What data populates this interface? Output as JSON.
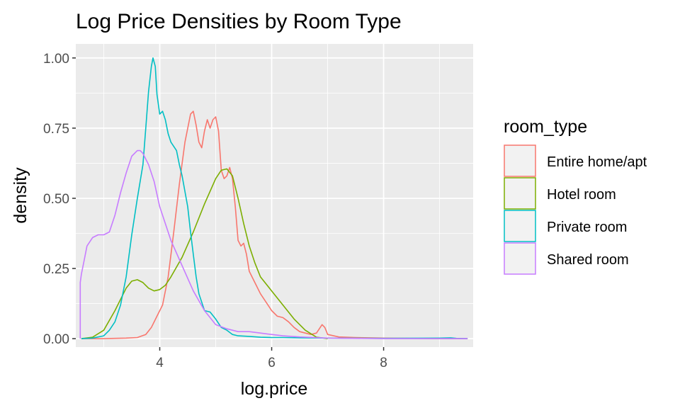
{
  "chart_data": {
    "type": "line",
    "title": "Log Price Densities by Room Type",
    "xlabel": "log.price",
    "ylabel": "density",
    "xlim": [
      2.5,
      9.6
    ],
    "ylim": [
      -0.03,
      1.05
    ],
    "x_ticks": [
      4,
      6,
      8
    ],
    "x_tick_labels": [
      "4",
      "6",
      "8"
    ],
    "y_ticks": [
      0,
      0.25,
      0.5,
      0.75,
      1.0
    ],
    "y_tick_labels": [
      "0.00",
      "0.25",
      "0.50",
      "0.75",
      "1.00"
    ],
    "grid": true,
    "legend": {
      "title": "room_type",
      "position": "right"
    },
    "series": [
      {
        "name": "Entire home/apt",
        "color": "#F8766D",
        "points": [
          [
            2.6,
            0.0
          ],
          [
            3.0,
            0.0
          ],
          [
            3.4,
            0.002
          ],
          [
            3.6,
            0.004
          ],
          [
            3.75,
            0.015
          ],
          [
            3.85,
            0.04
          ],
          [
            3.95,
            0.08
          ],
          [
            4.05,
            0.12
          ],
          [
            4.15,
            0.22
          ],
          [
            4.25,
            0.38
          ],
          [
            4.35,
            0.55
          ],
          [
            4.45,
            0.7
          ],
          [
            4.55,
            0.8
          ],
          [
            4.6,
            0.81
          ],
          [
            4.65,
            0.76
          ],
          [
            4.7,
            0.7
          ],
          [
            4.75,
            0.68
          ],
          [
            4.8,
            0.74
          ],
          [
            4.85,
            0.78
          ],
          [
            4.9,
            0.75
          ],
          [
            4.95,
            0.78
          ],
          [
            5.0,
            0.79
          ],
          [
            5.05,
            0.74
          ],
          [
            5.1,
            0.6
          ],
          [
            5.15,
            0.57
          ],
          [
            5.2,
            0.58
          ],
          [
            5.25,
            0.61
          ],
          [
            5.3,
            0.57
          ],
          [
            5.35,
            0.47
          ],
          [
            5.4,
            0.35
          ],
          [
            5.45,
            0.33
          ],
          [
            5.5,
            0.34
          ],
          [
            5.55,
            0.3
          ],
          [
            5.6,
            0.24
          ],
          [
            5.7,
            0.2
          ],
          [
            5.8,
            0.16
          ],
          [
            5.9,
            0.13
          ],
          [
            6.0,
            0.1
          ],
          [
            6.1,
            0.08
          ],
          [
            6.2,
            0.075
          ],
          [
            6.3,
            0.06
          ],
          [
            6.4,
            0.04
          ],
          [
            6.5,
            0.025
          ],
          [
            6.6,
            0.02
          ],
          [
            6.7,
            0.015
          ],
          [
            6.8,
            0.02
          ],
          [
            6.9,
            0.05
          ],
          [
            6.95,
            0.04
          ],
          [
            7.0,
            0.015
          ],
          [
            7.2,
            0.006
          ],
          [
            7.5,
            0.004
          ],
          [
            8.0,
            0.002
          ],
          [
            9.0,
            0.0
          ],
          [
            9.5,
            0.0
          ]
        ]
      },
      {
        "name": "Hotel room",
        "color": "#7CAE00",
        "points": [
          [
            2.6,
            0.0
          ],
          [
            2.8,
            0.005
          ],
          [
            3.0,
            0.03
          ],
          [
            3.2,
            0.1
          ],
          [
            3.4,
            0.18
          ],
          [
            3.5,
            0.205
          ],
          [
            3.6,
            0.21
          ],
          [
            3.7,
            0.2
          ],
          [
            3.8,
            0.18
          ],
          [
            3.9,
            0.17
          ],
          [
            4.0,
            0.175
          ],
          [
            4.1,
            0.19
          ],
          [
            4.2,
            0.22
          ],
          [
            4.4,
            0.29
          ],
          [
            4.6,
            0.38
          ],
          [
            4.8,
            0.48
          ],
          [
            5.0,
            0.57
          ],
          [
            5.1,
            0.6
          ],
          [
            5.2,
            0.605
          ],
          [
            5.3,
            0.58
          ],
          [
            5.4,
            0.5
          ],
          [
            5.5,
            0.41
          ],
          [
            5.6,
            0.33
          ],
          [
            5.7,
            0.27
          ],
          [
            5.8,
            0.22
          ],
          [
            6.0,
            0.17
          ],
          [
            6.2,
            0.12
          ],
          [
            6.4,
            0.07
          ],
          [
            6.6,
            0.03
          ],
          [
            6.8,
            0.005
          ],
          [
            7.0,
            0.0
          ]
        ]
      },
      {
        "name": "Private room",
        "color": "#00BFC4",
        "points": [
          [
            2.6,
            0.0
          ],
          [
            2.8,
            0.002
          ],
          [
            3.0,
            0.01
          ],
          [
            3.1,
            0.03
          ],
          [
            3.2,
            0.06
          ],
          [
            3.3,
            0.12
          ],
          [
            3.4,
            0.22
          ],
          [
            3.5,
            0.37
          ],
          [
            3.6,
            0.5
          ],
          [
            3.7,
            0.62
          ],
          [
            3.75,
            0.75
          ],
          [
            3.8,
            0.88
          ],
          [
            3.85,
            0.97
          ],
          [
            3.88,
            1.0
          ],
          [
            3.92,
            0.97
          ],
          [
            3.95,
            0.87
          ],
          [
            4.0,
            0.8
          ],
          [
            4.05,
            0.81
          ],
          [
            4.1,
            0.78
          ],
          [
            4.15,
            0.73
          ],
          [
            4.2,
            0.7
          ],
          [
            4.3,
            0.67
          ],
          [
            4.35,
            0.62
          ],
          [
            4.4,
            0.58
          ],
          [
            4.5,
            0.47
          ],
          [
            4.55,
            0.38
          ],
          [
            4.6,
            0.3
          ],
          [
            4.65,
            0.22
          ],
          [
            4.7,
            0.16
          ],
          [
            4.75,
            0.13
          ],
          [
            4.8,
            0.1
          ],
          [
            4.9,
            0.095
          ],
          [
            5.0,
            0.07
          ],
          [
            5.1,
            0.04
          ],
          [
            5.2,
            0.03
          ],
          [
            5.3,
            0.015
          ],
          [
            5.4,
            0.01
          ],
          [
            5.6,
            0.008
          ],
          [
            5.8,
            0.005
          ],
          [
            6.0,
            0.004
          ],
          [
            6.2,
            0.004
          ],
          [
            6.5,
            0.003
          ],
          [
            7.0,
            0.002
          ],
          [
            8.0,
            0.001
          ],
          [
            9.0,
            0.002
          ],
          [
            9.2,
            0.003
          ],
          [
            9.3,
            0.001
          ],
          [
            9.5,
            0.0
          ]
        ]
      },
      {
        "name": "Shared room",
        "color": "#C77CFF",
        "points": [
          [
            2.58,
            0.0
          ],
          [
            2.58,
            0.2
          ],
          [
            2.6,
            0.23
          ],
          [
            2.65,
            0.28
          ],
          [
            2.7,
            0.33
          ],
          [
            2.8,
            0.36
          ],
          [
            2.9,
            0.37
          ],
          [
            3.0,
            0.37
          ],
          [
            3.1,
            0.38
          ],
          [
            3.2,
            0.44
          ],
          [
            3.3,
            0.52
          ],
          [
            3.4,
            0.59
          ],
          [
            3.5,
            0.65
          ],
          [
            3.6,
            0.67
          ],
          [
            3.65,
            0.67
          ],
          [
            3.7,
            0.66
          ],
          [
            3.8,
            0.62
          ],
          [
            3.9,
            0.56
          ],
          [
            4.0,
            0.47
          ],
          [
            4.2,
            0.35
          ],
          [
            4.4,
            0.26
          ],
          [
            4.6,
            0.17
          ],
          [
            4.8,
            0.1
          ],
          [
            5.0,
            0.05
          ],
          [
            5.2,
            0.035
          ],
          [
            5.4,
            0.025
          ],
          [
            5.6,
            0.025
          ],
          [
            5.8,
            0.02
          ],
          [
            6.0,
            0.015
          ],
          [
            6.2,
            0.01
          ],
          [
            6.5,
            0.006
          ],
          [
            7.0,
            0.002
          ],
          [
            8.0,
            0.0
          ],
          [
            9.5,
            0.0
          ]
        ]
      }
    ]
  }
}
